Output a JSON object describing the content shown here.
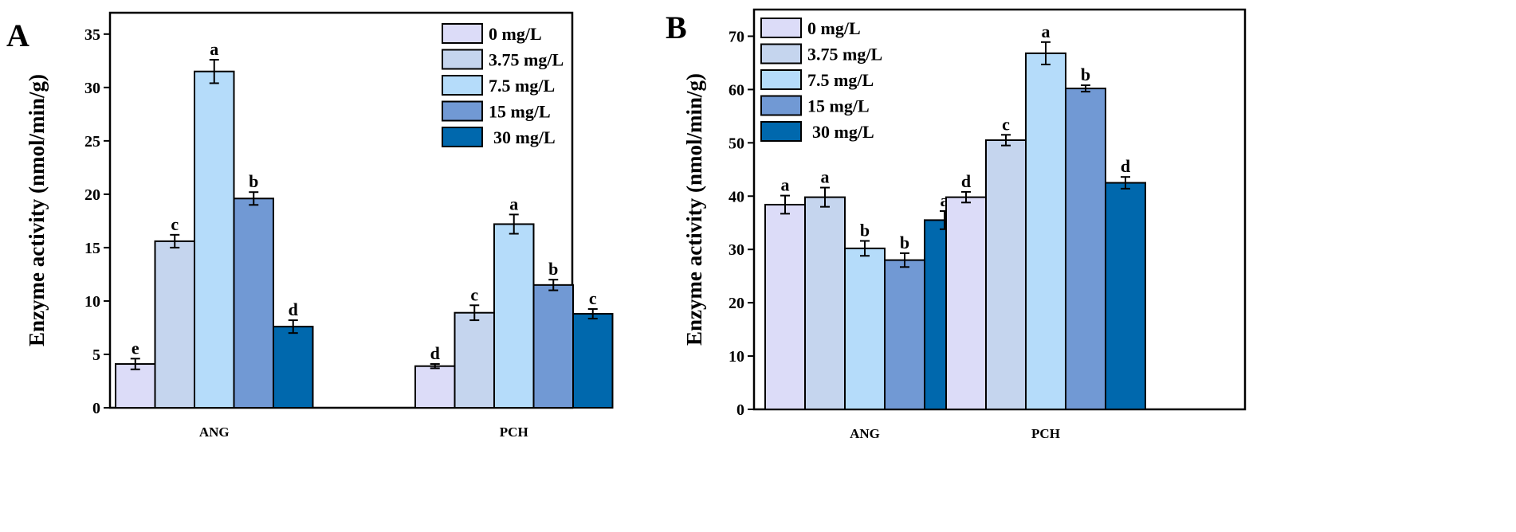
{
  "chart_data": [
    {
      "panel": "A",
      "type": "bar",
      "ylabel": "Enzyme activity (nmol/min/g)",
      "xlabel": "",
      "ylim": [
        0,
        37
      ],
      "yticks": [
        0,
        5,
        10,
        15,
        20,
        25,
        30,
        35
      ],
      "categories": [
        "ANG",
        "PCH"
      ],
      "legend_position": "top-right",
      "series": [
        {
          "name": "0 mg/L",
          "color": "#dcdcf8",
          "values": [
            4.1,
            3.9
          ],
          "errors": [
            0.5,
            0.2
          ],
          "letters": [
            "e",
            "d"
          ]
        },
        {
          "name": "3.75 mg/L",
          "color": "#c5d5ee",
          "values": [
            15.6,
            8.9
          ],
          "errors": [
            0.6,
            0.7
          ],
          "letters": [
            "c",
            "c"
          ]
        },
        {
          "name": "7.5 mg/L",
          "color": "#b5dcfa",
          "values": [
            31.5,
            17.2
          ],
          "errors": [
            1.1,
            0.9
          ],
          "letters": [
            "a",
            "a"
          ]
        },
        {
          "name": "15 mg/L",
          "color": "#7199d4",
          "values": [
            19.6,
            11.5
          ],
          "errors": [
            0.6,
            0.5
          ],
          "letters": [
            "b",
            "b"
          ]
        },
        {
          "name": "30 mg/L",
          "color": "#0068ad",
          "values": [
            7.6,
            8.8
          ],
          "errors": [
            0.6,
            0.45
          ],
          "letters": [
            "d",
            "c"
          ]
        }
      ]
    },
    {
      "panel": "B",
      "type": "bar",
      "ylabel": "Enzyme activity (nmol/min/g)",
      "xlabel": "",
      "ylim": [
        0,
        75
      ],
      "yticks": [
        0,
        10,
        20,
        30,
        40,
        50,
        60,
        70
      ],
      "categories": [
        "ANG",
        "PCH"
      ],
      "legend_position": "top-left",
      "series": [
        {
          "name": "0 mg/L",
          "color": "#dcdcf8",
          "values": [
            38.4,
            39.8
          ],
          "errors": [
            1.7,
            1.0
          ],
          "letters": [
            "a",
            "d"
          ]
        },
        {
          "name": "3.75 mg/L",
          "color": "#c5d5ee",
          "values": [
            39.8,
            50.5
          ],
          "errors": [
            1.8,
            1.0
          ],
          "letters": [
            "a",
            "c"
          ]
        },
        {
          "name": "7.5 mg/L",
          "color": "#b5dcfa",
          "values": [
            30.2,
            66.8
          ],
          "errors": [
            1.4,
            2.1
          ],
          "letters": [
            "b",
            "a"
          ]
        },
        {
          "name": "15 mg/L",
          "color": "#7199d4",
          "values": [
            28.0,
            60.2
          ],
          "errors": [
            1.3,
            0.6
          ],
          "letters": [
            "b",
            "b"
          ]
        },
        {
          "name": "30 mg/L",
          "color": "#0068ad",
          "values": [
            35.5,
            42.5
          ],
          "errors": [
            1.7,
            1.1
          ],
          "letters": [
            "a",
            "d"
          ]
        }
      ]
    }
  ]
}
